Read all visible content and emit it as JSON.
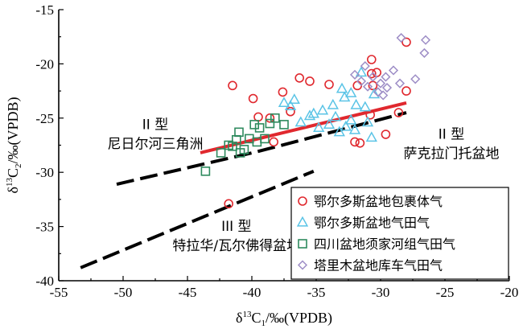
{
  "chart_data": {
    "type": "scatter",
    "title": "",
    "xlabel": "δ13C1/‰(VPDB)",
    "ylabel": "δ13C2/‰(VPDB)",
    "xlim": [
      -55,
      -20
    ],
    "ylim": [
      -40,
      -15
    ],
    "x_ticks": [
      -55,
      -50,
      -45,
      -40,
      -35,
      -30,
      -25,
      -20
    ],
    "y_ticks": [
      -40,
      -35,
      -30,
      -25,
      -20,
      -15
    ],
    "x_tick_labels": [
      "-55",
      "-50",
      "-45",
      "-40",
      "-35",
      "-30",
      "-25",
      "-20"
    ],
    "y_tick_labels": [
      "-40",
      "-35",
      "-30",
      "-25",
      "-20",
      "-15"
    ],
    "legend_position": "bottom-right",
    "colors": {
      "ordos_inclusion": "#e0282e",
      "ordos_field": "#5bc4e6",
      "sichuan_xujiahe": "#2e8a5e",
      "tarim_kuqa": "#9d8dc6",
      "trend_red": "#e0282e",
      "dashed": "#000000"
    },
    "series": [
      {
        "name": "鄂尔多斯盆地包裹体气",
        "marker": "circle",
        "color": "#e0282e",
        "points": [
          [
            -41.5,
            -22.0
          ],
          [
            -39.9,
            -23.2
          ],
          [
            -39.5,
            -24.9
          ],
          [
            -38.6,
            -25.0
          ],
          [
            -37.6,
            -22.6
          ],
          [
            -37.0,
            -24.4
          ],
          [
            -36.3,
            -21.3
          ],
          [
            -35.5,
            -21.6
          ],
          [
            -38.3,
            -27.2
          ],
          [
            -34.0,
            -21.9
          ],
          [
            -32.0,
            -27.2
          ],
          [
            -31.6,
            -27.3
          ],
          [
            -30.7,
            -19.6
          ],
          [
            -30.3,
            -20.8
          ],
          [
            -30.6,
            -22.0
          ],
          [
            -30.7,
            -20.9
          ],
          [
            -28.0,
            -18.0
          ],
          [
            -28.0,
            -22.5
          ],
          [
            -28.6,
            -24.5
          ],
          [
            -29.6,
            -26.5
          ],
          [
            -31.8,
            -22.0
          ],
          [
            -30.8,
            -24.7
          ],
          [
            -41.8,
            -32.9
          ]
        ]
      },
      {
        "name": "鄂尔多斯盆地气田气",
        "marker": "triangle",
        "color": "#5bc4e6",
        "points": [
          [
            -37.5,
            -23.6
          ],
          [
            -37.0,
            -23.9
          ],
          [
            -36.2,
            -25.4
          ],
          [
            -35.5,
            -24.8
          ],
          [
            -35.2,
            -24.6
          ],
          [
            -34.5,
            -24.3
          ],
          [
            -34.0,
            -25.6
          ],
          [
            -33.5,
            -24.9
          ],
          [
            -33.0,
            -22.3
          ],
          [
            -32.8,
            -23.1
          ],
          [
            -32.3,
            -22.7
          ],
          [
            -31.5,
            -20.8
          ],
          [
            -33.7,
            -23.8
          ],
          [
            -32.7,
            -25.8
          ],
          [
            -33.2,
            -26.3
          ],
          [
            -32.0,
            -26.1
          ],
          [
            -32.3,
            -25.2
          ],
          [
            -31.2,
            -24.0
          ],
          [
            -30.5,
            -22.8
          ],
          [
            -31.9,
            -23.8
          ],
          [
            -36.7,
            -23.3
          ],
          [
            -34.8,
            -25.9
          ],
          [
            -30.7,
            -26.8
          ],
          [
            -31.0,
            -25.4
          ]
        ]
      },
      {
        "name": "四川盆地须家河组气田气",
        "marker": "square",
        "color": "#2e8a5e",
        "points": [
          [
            -43.6,
            -29.9
          ],
          [
            -42.4,
            -28.2
          ],
          [
            -41.8,
            -27.5
          ],
          [
            -41.2,
            -27.0
          ],
          [
            -41.0,
            -26.3
          ],
          [
            -40.6,
            -27.9
          ],
          [
            -40.2,
            -26.9
          ],
          [
            -39.8,
            -25.6
          ],
          [
            -39.4,
            -25.9
          ],
          [
            -39.0,
            -26.9
          ],
          [
            -38.6,
            -25.5
          ],
          [
            -38.2,
            -25.0
          ],
          [
            -37.5,
            -25.6
          ],
          [
            -40.9,
            -28.2
          ],
          [
            -41.5,
            -27.6
          ],
          [
            -39.6,
            -27.2
          ]
        ]
      },
      {
        "name": "塔里木盆地库车气田气",
        "marker": "diamond",
        "color": "#9d8dc6",
        "points": [
          [
            -28.4,
            -17.6
          ],
          [
            -26.5,
            -17.8
          ],
          [
            -26.6,
            -19.0
          ],
          [
            -27.3,
            -21.4
          ],
          [
            -28.5,
            -21.8
          ],
          [
            -29.0,
            -20.6
          ],
          [
            -29.6,
            -21.2
          ],
          [
            -29.5,
            -22.2
          ],
          [
            -30.0,
            -21.8
          ],
          [
            -30.6,
            -21.2
          ],
          [
            -30.2,
            -22.6
          ],
          [
            -31.0,
            -22.1
          ],
          [
            -31.5,
            -21.6
          ],
          [
            -32.0,
            -21.0
          ],
          [
            -31.2,
            -20.2
          ],
          [
            -29.8,
            -22.9
          ]
        ]
      }
    ],
    "trend_lines": [
      {
        "style": "solid",
        "color": "#e0282e",
        "points": [
          [
            -44,
            -28.2
          ],
          [
            -28,
            -23.6
          ]
        ]
      },
      {
        "style": "dashed",
        "color": "#000000",
        "points": [
          [
            -50.5,
            -31.1
          ],
          [
            -39.6,
            -28.1
          ],
          [
            -28,
            -24.5
          ]
        ]
      },
      {
        "style": "dashed",
        "color": "#000000",
        "points": [
          [
            -53.3,
            -38.8
          ],
          [
            -35.2,
            -29.9
          ]
        ]
      }
    ],
    "annotations": [
      {
        "lines": [
          "II 型",
          "尼日尔河三角洲"
        ],
        "x": -47.5,
        "y": -26.0
      },
      {
        "lines": [
          "II 型",
          "萨克拉门托盆地"
        ],
        "x": -24.5,
        "y": -26.9
      },
      {
        "lines": [
          "III 型",
          "特拉华/瓦尔佛得盆地"
        ],
        "x": -41.2,
        "y": -35.4
      }
    ]
  }
}
